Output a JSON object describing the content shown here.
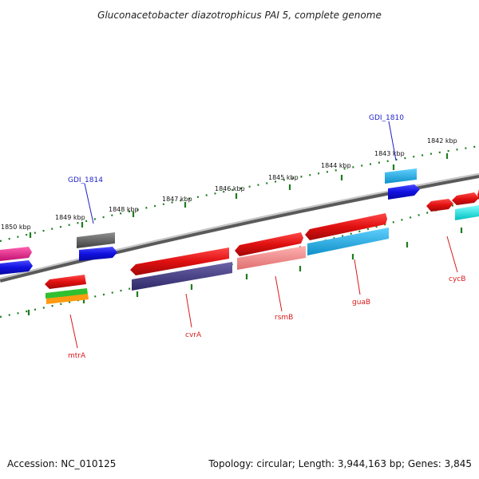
{
  "title": "Gluconacetobacter diazotrophicus PAI 5, complete genome",
  "footer": {
    "accession": "Accession: NC_010125",
    "summary": "Topology: circular; Length: 3,944,163 bp; Genes: 3,845"
  },
  "ticks": [
    "1850 kbp",
    "1849 kbp",
    "1848 kbp",
    "1847 kbp",
    "1846 kbp",
    "1845 kbp",
    "1844 kbp",
    "1843 kbp",
    "1842 kbp"
  ],
  "gene_labels": {
    "GDI_1814": "GDI_1814",
    "GDI_1810": "GDI_1810",
    "mtrA": "mtrA",
    "cvrA": "cvrA",
    "rsmB": "rsmB",
    "guaB": "guaB",
    "cycB": "cycB"
  },
  "colors": {
    "backbone": "#8a8a8a",
    "dots": "#1e7d1e",
    "red": "#e01010",
    "pink_red": "#f08080",
    "blue": "#1010e0",
    "cyan": "#1ab0e0",
    "navy": "#403a80",
    "gray": "#606060",
    "magenta": "#e0208a",
    "green": "#30c030",
    "orange": "#ff9a10",
    "aqua": "#00e8e8"
  }
}
